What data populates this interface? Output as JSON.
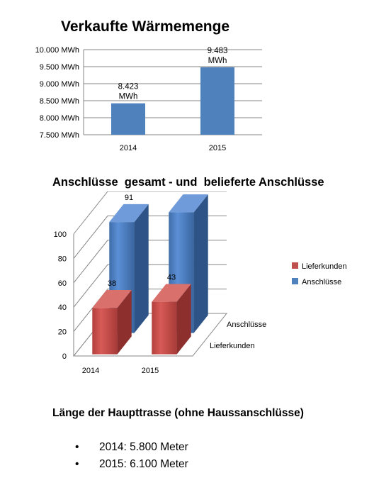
{
  "chart_data": [
    {
      "type": "bar",
      "title": "Verkaufte Wärmemenge",
      "categories": [
        "2014",
        "2015"
      ],
      "values": [
        8423,
        9483
      ],
      "data_labels": [
        [
          "8.423",
          "MWh"
        ],
        [
          "9.483",
          "MWh"
        ]
      ],
      "ylim": [
        7500,
        10000
      ],
      "yticks": [
        "7.500 MWh",
        "8.000 MWh",
        "8.500 MWh",
        "9.000 MWh",
        "9.500 MWh",
        "10.000 MWh"
      ],
      "grid": true,
      "legend": "none",
      "color": "#4F81BD"
    },
    {
      "type": "bar",
      "subtype": "3d-column",
      "title": "Anschlüsse  gesamt - und  belieferte Anschlüsse",
      "categories": [
        "2014",
        "2015"
      ],
      "depth_labels": [
        "Anschlüsse",
        "Lieferkunden"
      ],
      "series": [
        {
          "name": "Lieferkunden",
          "values": [
            38,
            43
          ],
          "color": "#C0504D"
        },
        {
          "name": "Anschlüsse",
          "values": [
            91,
            99
          ],
          "color": "#4F81BD"
        }
      ],
      "ylim": [
        0,
        100
      ],
      "yticks": [
        "0",
        "20",
        "40",
        "60",
        "80",
        "100"
      ],
      "grid": true,
      "legend": "right"
    }
  ],
  "section": {
    "title": "Länge der Haupttrasse (ohne Haussanschlüsse)",
    "bullet_symbol": "•",
    "items": [
      "2014: 5.800 Meter",
      "2015: 6.100 Meter"
    ]
  }
}
